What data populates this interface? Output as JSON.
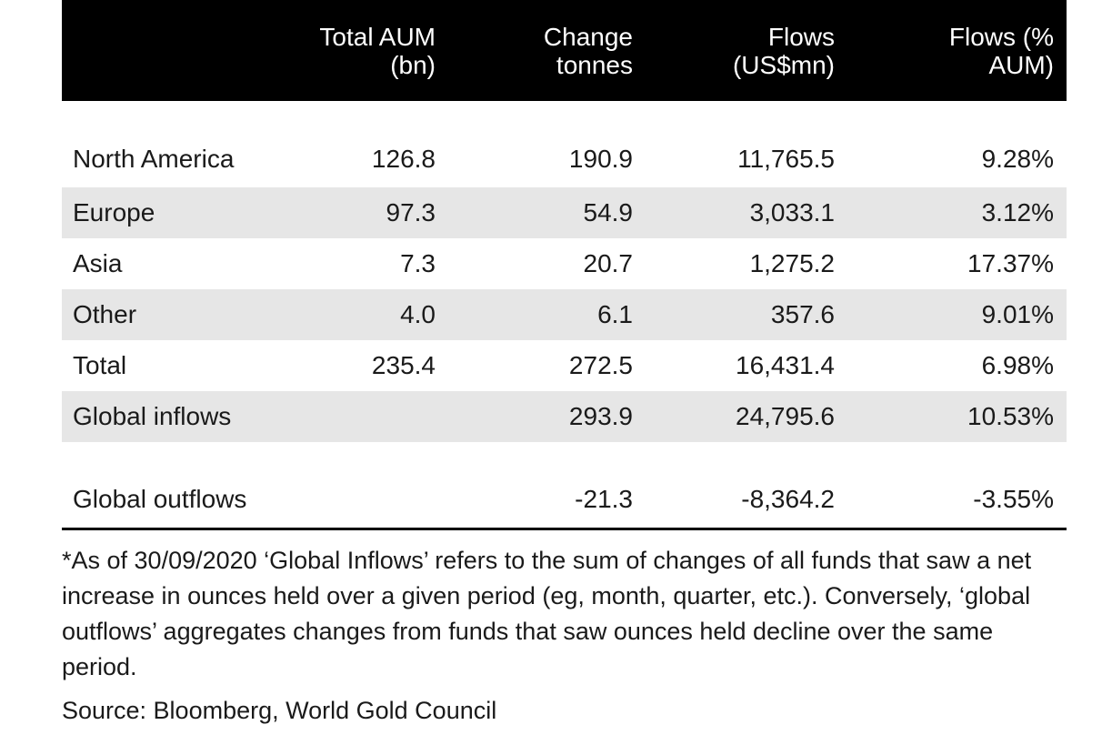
{
  "table": {
    "headers": [
      "",
      "Total AUM\n(bn)",
      "Change\ntonnes",
      "Flows\n(US$mn)",
      "Flows (%\nAUM)"
    ],
    "rows": [
      {
        "label": "North America",
        "total_aum": "126.8",
        "change_tonnes": "190.9",
        "flows_usd": "11,765.5",
        "flows_pct": "9.28%"
      },
      {
        "label": "Europe",
        "total_aum": "97.3",
        "change_tonnes": "54.9",
        "flows_usd": "3,033.1",
        "flows_pct": "3.12%"
      },
      {
        "label": "Asia",
        "total_aum": "7.3",
        "change_tonnes": "20.7",
        "flows_usd": "1,275.2",
        "flows_pct": "17.37%"
      },
      {
        "label": "Other",
        "total_aum": "4.0",
        "change_tonnes": "6.1",
        "flows_usd": "357.6",
        "flows_pct": "9.01%"
      },
      {
        "label": "Total",
        "total_aum": "235.4",
        "change_tonnes": "272.5",
        "flows_usd": "16,431.4",
        "flows_pct": "6.98%"
      },
      {
        "label": "Global inflows",
        "total_aum": "",
        "change_tonnes": "293.9",
        "flows_usd": "24,795.6",
        "flows_pct": "10.53%"
      },
      {
        "label": "Global outflows",
        "total_aum": "",
        "change_tonnes": "-21.3",
        "flows_usd": "-8,364.2",
        "flows_pct": "-3.55%"
      }
    ]
  },
  "footnote": "*As of 30/09/2020 ‘Global Inflows’ refers to the sum of changes of all funds that saw a net increase in ounces held over a given period (eg, month, quarter, etc.). Conversely, ‘global outflows’ aggregates changes from funds that saw ounces held decline over the same period.",
  "source": "Source: Bloomberg, World Gold Council",
  "colors": {
    "header_bg": "#000000",
    "header_text": "#ffffff",
    "row_shade": "#e6e6e6"
  }
}
